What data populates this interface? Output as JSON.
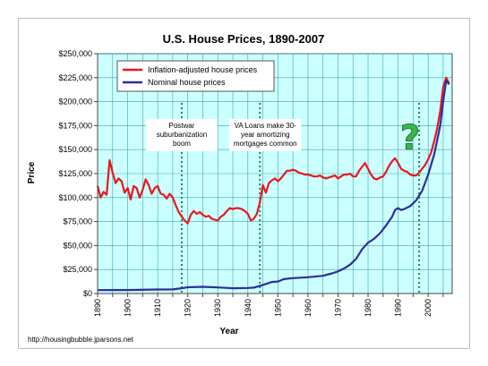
{
  "chart_data": {
    "type": "line",
    "title": "U.S. House Prices, 1890-2007",
    "xlabel": "Year",
    "ylabel": "Price",
    "xlim": [
      1890,
      2008
    ],
    "ylim": [
      0,
      250000
    ],
    "grid": true,
    "legend_position": "top-left",
    "x_ticks": [
      1890,
      1895,
      1900,
      1905,
      1910,
      1915,
      1920,
      1925,
      1930,
      1935,
      1940,
      1945,
      1950,
      1955,
      1960,
      1965,
      1970,
      1975,
      1980,
      1985,
      1990,
      1995,
      2000,
      2005
    ],
    "x_tick_labels": [
      "1890",
      "1900",
      "1910",
      "1920",
      "1930",
      "1940",
      "1950",
      "1960",
      "1970",
      "1980",
      "1990",
      "2000"
    ],
    "y_tick_labels": [
      "$0",
      "$25,000",
      "$50,000",
      "$75,000",
      "$100,000",
      "$125,000",
      "$150,000",
      "$175,000",
      "$200,000",
      "$225,000",
      "$250,000"
    ],
    "series": [
      {
        "name": "Inflation-adjusted house prices",
        "color": "#e8181e",
        "points": [
          [
            1890,
            112000
          ],
          [
            1891,
            100000
          ],
          [
            1892,
            106000
          ],
          [
            1893,
            103000
          ],
          [
            1894,
            139000
          ],
          [
            1895,
            126000
          ],
          [
            1896,
            115000
          ],
          [
            1897,
            120000
          ],
          [
            1898,
            117000
          ],
          [
            1899,
            105000
          ],
          [
            1900,
            110000
          ],
          [
            1901,
            98000
          ],
          [
            1902,
            112000
          ],
          [
            1903,
            110000
          ],
          [
            1904,
            100000
          ],
          [
            1905,
            108000
          ],
          [
            1906,
            119000
          ],
          [
            1907,
            113000
          ],
          [
            1908,
            104000
          ],
          [
            1909,
            110000
          ],
          [
            1910,
            112000
          ],
          [
            1911,
            104000
          ],
          [
            1912,
            103000
          ],
          [
            1913,
            99000
          ],
          [
            1914,
            104000
          ],
          [
            1915,
            100000
          ],
          [
            1916,
            92000
          ],
          [
            1917,
            85000
          ],
          [
            1918,
            80000
          ],
          [
            1919,
            76000
          ],
          [
            1920,
            73000
          ],
          [
            1921,
            82000
          ],
          [
            1922,
            86000
          ],
          [
            1923,
            83000
          ],
          [
            1924,
            85000
          ],
          [
            1925,
            82000
          ],
          [
            1926,
            80000
          ],
          [
            1927,
            81000
          ],
          [
            1928,
            78000
          ],
          [
            1929,
            77000
          ],
          [
            1930,
            76000
          ],
          [
            1931,
            80000
          ],
          [
            1932,
            82000
          ],
          [
            1933,
            86000
          ],
          [
            1934,
            89000
          ],
          [
            1935,
            88000
          ],
          [
            1936,
            89000
          ],
          [
            1937,
            89000
          ],
          [
            1938,
            88000
          ],
          [
            1939,
            86000
          ],
          [
            1940,
            83000
          ],
          [
            1941,
            76000
          ],
          [
            1942,
            78000
          ],
          [
            1943,
            83000
          ],
          [
            1944,
            95000
          ],
          [
            1945,
            113000
          ],
          [
            1946,
            105000
          ],
          [
            1947,
            115000
          ],
          [
            1948,
            118000
          ],
          [
            1949,
            120000
          ],
          [
            1950,
            117000
          ],
          [
            1951,
            120000
          ],
          [
            1952,
            124000
          ],
          [
            1953,
            128000
          ],
          [
            1954,
            128000
          ],
          [
            1955,
            129000
          ],
          [
            1956,
            128000
          ],
          [
            1957,
            126000
          ],
          [
            1958,
            125000
          ],
          [
            1959,
            124000
          ],
          [
            1960,
            124000
          ],
          [
            1961,
            123000
          ],
          [
            1962,
            122000
          ],
          [
            1963,
            122000
          ],
          [
            1964,
            123000
          ],
          [
            1965,
            121000
          ],
          [
            1966,
            120000
          ],
          [
            1967,
            121000
          ],
          [
            1968,
            122000
          ],
          [
            1969,
            123000
          ],
          [
            1970,
            120000
          ],
          [
            1971,
            122000
          ],
          [
            1972,
            124000
          ],
          [
            1973,
            124000
          ],
          [
            1974,
            125000
          ],
          [
            1975,
            122000
          ],
          [
            1976,
            122000
          ],
          [
            1977,
            128000
          ],
          [
            1978,
            132000
          ],
          [
            1979,
            136000
          ],
          [
            1980,
            130000
          ],
          [
            1981,
            124000
          ],
          [
            1982,
            120000
          ],
          [
            1983,
            119000
          ],
          [
            1984,
            121000
          ],
          [
            1985,
            122000
          ],
          [
            1986,
            127000
          ],
          [
            1987,
            133000
          ],
          [
            1988,
            138000
          ],
          [
            1989,
            141000
          ],
          [
            1990,
            136000
          ],
          [
            1991,
            130000
          ],
          [
            1992,
            128000
          ],
          [
            1993,
            127000
          ],
          [
            1994,
            124000
          ],
          [
            1995,
            123000
          ],
          [
            1996,
            123000
          ],
          [
            1997,
            126000
          ],
          [
            1998,
            130000
          ],
          [
            1999,
            134000
          ],
          [
            2000,
            140000
          ],
          [
            2001,
            147000
          ],
          [
            2002,
            159000
          ],
          [
            2003,
            172000
          ],
          [
            2004,
            190000
          ],
          [
            2005,
            215000
          ],
          [
            2006,
            225000
          ],
          [
            2007,
            219000
          ]
        ]
      },
      {
        "name": "Nominal house prices",
        "color": "#2e2e9a",
        "points": [
          [
            1890,
            3500
          ],
          [
            1900,
            3600
          ],
          [
            1910,
            4200
          ],
          [
            1915,
            4300
          ],
          [
            1918,
            5500
          ],
          [
            1920,
            6500
          ],
          [
            1925,
            7000
          ],
          [
            1930,
            6300
          ],
          [
            1935,
            5500
          ],
          [
            1940,
            5800
          ],
          [
            1942,
            6200
          ],
          [
            1945,
            9000
          ],
          [
            1948,
            12000
          ],
          [
            1950,
            12500
          ],
          [
            1952,
            15000
          ],
          [
            1955,
            16000
          ],
          [
            1960,
            17000
          ],
          [
            1965,
            18500
          ],
          [
            1968,
            21000
          ],
          [
            1970,
            23000
          ],
          [
            1972,
            26000
          ],
          [
            1974,
            30000
          ],
          [
            1976,
            36000
          ],
          [
            1978,
            46000
          ],
          [
            1980,
            53000
          ],
          [
            1982,
            57000
          ],
          [
            1984,
            63000
          ],
          [
            1986,
            71000
          ],
          [
            1988,
            80000
          ],
          [
            1989,
            87000
          ],
          [
            1990,
            89000
          ],
          [
            1991,
            87000
          ],
          [
            1992,
            88000
          ],
          [
            1994,
            91000
          ],
          [
            1996,
            97000
          ],
          [
            1998,
            107000
          ],
          [
            2000,
            124000
          ],
          [
            2002,
            145000
          ],
          [
            2004,
            175000
          ],
          [
            2005,
            200000
          ],
          [
            2006,
            222000
          ],
          [
            2007,
            218000
          ]
        ]
      }
    ],
    "annotations": [
      {
        "name": "postwar",
        "lines": [
          "Postwar",
          "suburbanization",
          "boom"
        ],
        "x": 1918
      },
      {
        "name": "va-loans",
        "lines": [
          "VA Loans make 30-",
          "year amortizing",
          "mortgages common"
        ],
        "x": 1944
      },
      {
        "name": "question",
        "text": "?",
        "x": 1997
      }
    ]
  },
  "colors": {
    "plot_bg": "#ccffff",
    "grid": "#3fa6a6",
    "marker_line": "#1e8a5a"
  },
  "source": "http://housingbubble.jparsons.net"
}
